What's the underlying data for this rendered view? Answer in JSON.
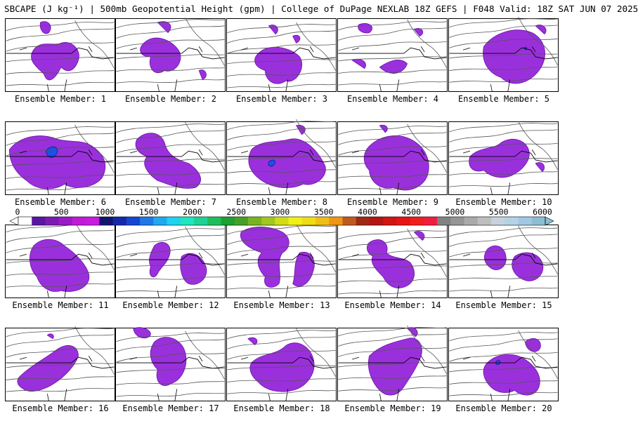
{
  "title": "SBCAPE (J kg⁻¹) | 500mb Geopotential Height (gpm) | College of DuPage NEXLAB 18Z GEFS | F048 Valid: 18Z SAT JUN 07 2025",
  "colorbar": {
    "labels": [
      "0",
      "500",
      "1000",
      "1500",
      "2000",
      "2500",
      "3000",
      "3500",
      "4000",
      "4500",
      "5000",
      "5500",
      "6000"
    ],
    "colors": [
      "#ffffff",
      "#5a16a0",
      "#7a1ab4",
      "#9a1ac8",
      "#c01ad8",
      "#c81ae0",
      "#14146e",
      "#1428aa",
      "#1446d2",
      "#1e78e6",
      "#1eaaf0",
      "#1ed2f0",
      "#1ee6be",
      "#1ed296",
      "#1ebe5a",
      "#1ea032",
      "#46a028",
      "#78b41e",
      "#a0c81e",
      "#d2dc14",
      "#f0f014",
      "#f0dc14",
      "#f0be14",
      "#f09614",
      "#be5a1e",
      "#a02814",
      "#b41414",
      "#d21414",
      "#e61414",
      "#f01e1e",
      "#f01e3c",
      "#828282",
      "#969696",
      "#aaaaaa",
      "#bebebe",
      "#c8d2dc",
      "#b4d2e6",
      "#a0c8e6",
      "#8cbed2"
    ]
  },
  "colors": {
    "cape": "#9a30dc",
    "cape_high": "#1c50e6",
    "border": "#000000",
    "contour": "#555555"
  },
  "members": [
    {
      "label": "Ensemble Member: 1"
    },
    {
      "label": "Ensemble Member: 2"
    },
    {
      "label": "Ensemble Member: 3"
    },
    {
      "label": "Ensemble Member: 4"
    },
    {
      "label": "Ensemble Member: 5"
    },
    {
      "label": "Ensemble Member: 6"
    },
    {
      "label": "Ensemble Member: 7"
    },
    {
      "label": "Ensemble Member: 8"
    },
    {
      "label": "Ensemble Member: 9"
    },
    {
      "label": "Ensemble Member: 10"
    },
    {
      "label": "Ensemble Member: 11"
    },
    {
      "label": "Ensemble Member: 12"
    },
    {
      "label": "Ensemble Member: 13"
    },
    {
      "label": "Ensemble Member: 14"
    },
    {
      "label": "Ensemble Member: 15"
    },
    {
      "label": "Ensemble Member: 16"
    },
    {
      "label": "Ensemble Member: 17"
    },
    {
      "label": "Ensemble Member: 18"
    },
    {
      "label": "Ensemble Member: 19"
    },
    {
      "label": "Ensemble Member: 20"
    }
  ]
}
